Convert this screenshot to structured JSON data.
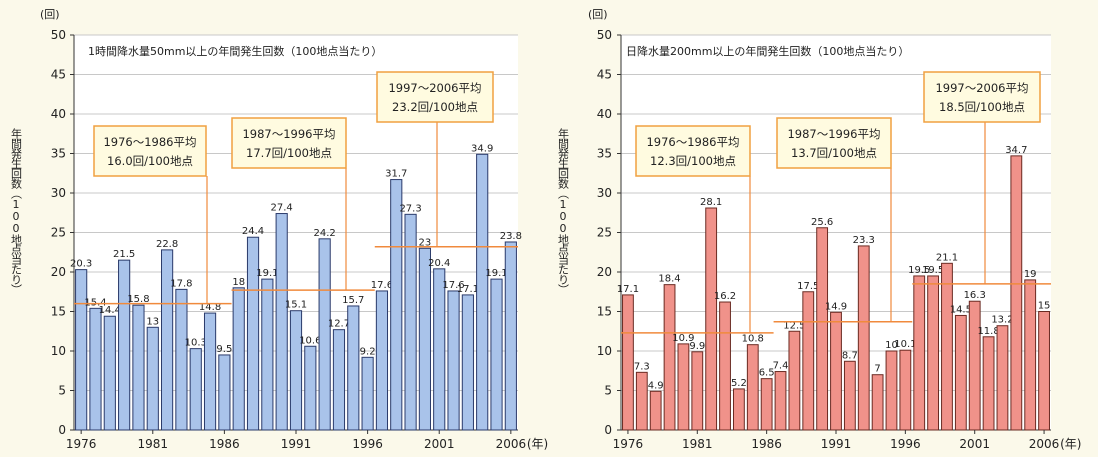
{
  "colors": {
    "background": "#fbf9ea",
    "plot_background": "#ffffff",
    "gridline": "#c8c8c8",
    "average_line": "#f08a3c",
    "annotation_border": "#f0a040",
    "annotation_fill": "#fffbe0",
    "left_bar_fill": "#a9c3ea",
    "left_bar_stroke": "#2a3a6a",
    "right_bar_fill": "#f0928a",
    "right_bar_stroke": "#6a2a22"
  },
  "chart_data": [
    {
      "type": "bar",
      "title": "1時間降水量50mm以上の年間発生回数（100地点当たり）",
      "unit_label": "(回)",
      "ylabel": "年間発生回数（100地点当たり）",
      "x_unit": "(年)",
      "ylim": [
        0,
        50
      ],
      "yticks": [
        0,
        5,
        10,
        15,
        20,
        25,
        30,
        35,
        40,
        45,
        50
      ],
      "grid": true,
      "xtick_labels": [
        "1976",
        "1981",
        "1986",
        "1991",
        "1996",
        "2001",
        "2006"
      ],
      "categories": [
        1976,
        1977,
        1978,
        1979,
        1980,
        1981,
        1982,
        1983,
        1984,
        1985,
        1986,
        1987,
        1988,
        1989,
        1990,
        1991,
        1992,
        1993,
        1994,
        1995,
        1996,
        1997,
        1998,
        1999,
        2000,
        2001,
        2002,
        2003,
        2004,
        2005,
        2006
      ],
      "values": [
        20.3,
        15.4,
        14.4,
        21.5,
        15.8,
        13.0,
        22.8,
        17.8,
        10.3,
        14.8,
        9.5,
        18.0,
        24.4,
        19.1,
        27.4,
        15.1,
        10.6,
        24.2,
        12.7,
        15.7,
        9.2,
        17.6,
        31.7,
        27.3,
        23.0,
        20.4,
        17.6,
        17.1,
        34.9,
        19.1,
        23.8
      ],
      "averages": [
        {
          "start": 1976,
          "end": 1986,
          "value": 16.0,
          "label_line1": "1976～1986平均",
          "label_line2": "16.0回/100地点"
        },
        {
          "start": 1987,
          "end": 1996,
          "value": 17.7,
          "label_line1": "1987～1996平均",
          "label_line2": "17.7回/100地点"
        },
        {
          "start": 1997,
          "end": 2006,
          "value": 23.2,
          "label_line1": "1997～2006平均",
          "label_line2": "23.2回/100地点"
        }
      ]
    },
    {
      "type": "bar",
      "title": "日降水量200mm以上の年間発生回数（100地点当たり）",
      "unit_label": "(回)",
      "ylabel": "年間発生回数（100地点当たり）",
      "x_unit": "(年)",
      "ylim": [
        0,
        50
      ],
      "yticks": [
        0,
        5,
        10,
        15,
        20,
        25,
        30,
        35,
        40,
        45,
        50
      ],
      "grid": true,
      "xtick_labels": [
        "1976",
        "1981",
        "1986",
        "1991",
        "1996",
        "2001",
        "2006"
      ],
      "categories": [
        1976,
        1977,
        1978,
        1979,
        1980,
        1981,
        1982,
        1983,
        1984,
        1985,
        1986,
        1987,
        1988,
        1989,
        1990,
        1991,
        1992,
        1993,
        1994,
        1995,
        1996,
        1997,
        1998,
        1999,
        2000,
        2001,
        2002,
        2003,
        2004,
        2005,
        2006
      ],
      "values": [
        17.1,
        7.3,
        4.9,
        18.4,
        10.9,
        9.9,
        28.1,
        16.2,
        5.2,
        10.8,
        6.5,
        7.4,
        12.5,
        17.5,
        25.6,
        14.9,
        8.7,
        23.3,
        7.0,
        10.0,
        10.1,
        19.5,
        19.5,
        21.1,
        14.5,
        16.3,
        11.8,
        13.2,
        34.7,
        19.0,
        15.0
      ],
      "averages": [
        {
          "start": 1976,
          "end": 1986,
          "value": 12.3,
          "label_line1": "1976～1986平均",
          "label_line2": "12.3回/100地点"
        },
        {
          "start": 1987,
          "end": 1996,
          "value": 13.7,
          "label_line1": "1987～1996平均",
          "label_line2": "13.7回/100地点"
        },
        {
          "start": 1997,
          "end": 2006,
          "value": 18.5,
          "label_line1": "1997～2006平均",
          "label_line2": "18.5回/100地点"
        }
      ]
    }
  ]
}
